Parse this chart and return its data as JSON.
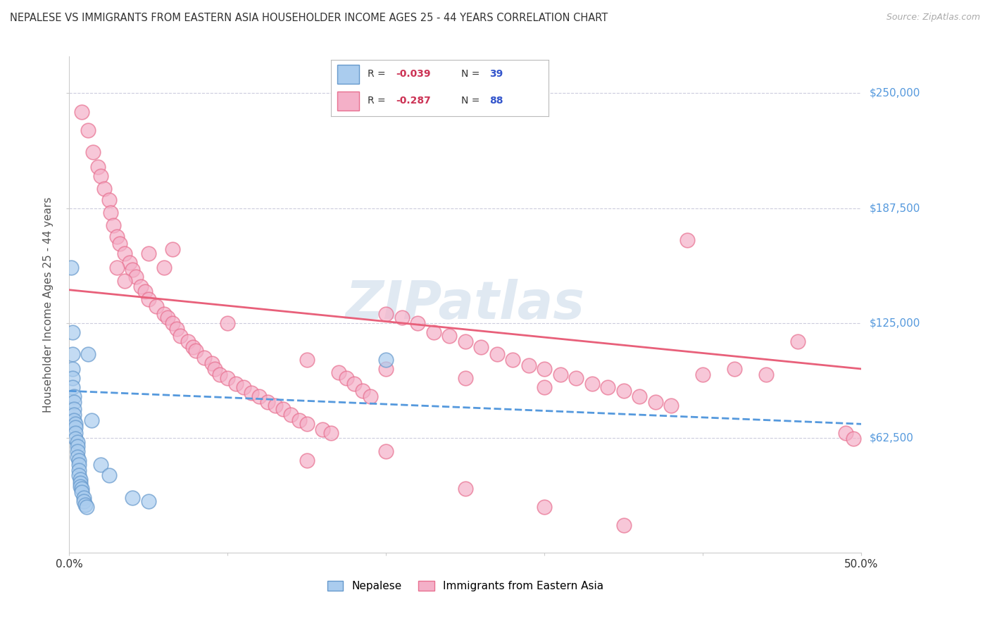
{
  "title": "NEPALESE VS IMMIGRANTS FROM EASTERN ASIA HOUSEHOLDER INCOME AGES 25 - 44 YEARS CORRELATION CHART",
  "source": "Source: ZipAtlas.com",
  "ylabel": "Householder Income Ages 25 - 44 years",
  "xmin": 0.0,
  "xmax": 0.5,
  "ymin": 0,
  "ymax": 270000,
  "yticks": [
    62500,
    125000,
    187500,
    250000
  ],
  "ytick_labels": [
    "$62,500",
    "$125,000",
    "$187,500",
    "$250,000"
  ],
  "xticks": [
    0.0,
    0.1,
    0.2,
    0.3,
    0.4,
    0.5
  ],
  "xtick_labels": [
    "0.0%",
    "",
    "",
    "",
    "",
    "50.0%"
  ],
  "nepalese_color": "#aaccee",
  "eastern_asia_color": "#f4b0c8",
  "nepalese_edge_color": "#6699cc",
  "eastern_asia_edge_color": "#e87090",
  "nepalese_line_color": "#5599dd",
  "eastern_asia_line_color": "#e8607a",
  "watermark": "ZIPatlas",
  "bg_color": "#ffffff",
  "grid_color": "#ccccdd",
  "right_label_color": "#5599dd",
  "nepalese_points": [
    [
      0.001,
      155000
    ],
    [
      0.002,
      120000
    ],
    [
      0.002,
      108000
    ],
    [
      0.002,
      100000
    ],
    [
      0.002,
      95000
    ],
    [
      0.002,
      90000
    ],
    [
      0.003,
      85000
    ],
    [
      0.003,
      82000
    ],
    [
      0.003,
      78000
    ],
    [
      0.003,
      75000
    ],
    [
      0.003,
      72000
    ],
    [
      0.004,
      70000
    ],
    [
      0.004,
      68000
    ],
    [
      0.004,
      65000
    ],
    [
      0.004,
      62000
    ],
    [
      0.005,
      60000
    ],
    [
      0.005,
      58000
    ],
    [
      0.005,
      55000
    ],
    [
      0.005,
      52000
    ],
    [
      0.006,
      50000
    ],
    [
      0.006,
      48000
    ],
    [
      0.006,
      45000
    ],
    [
      0.006,
      42000
    ],
    [
      0.007,
      40000
    ],
    [
      0.007,
      38000
    ],
    [
      0.007,
      36000
    ],
    [
      0.008,
      35000
    ],
    [
      0.008,
      33000
    ],
    [
      0.009,
      30000
    ],
    [
      0.009,
      28000
    ],
    [
      0.01,
      26000
    ],
    [
      0.011,
      25000
    ],
    [
      0.012,
      108000
    ],
    [
      0.014,
      72000
    ],
    [
      0.02,
      48000
    ],
    [
      0.025,
      42000
    ],
    [
      0.2,
      105000
    ],
    [
      0.04,
      30000
    ],
    [
      0.05,
      28000
    ]
  ],
  "eastern_asia_points": [
    [
      0.008,
      240000
    ],
    [
      0.012,
      230000
    ],
    [
      0.015,
      218000
    ],
    [
      0.018,
      210000
    ],
    [
      0.02,
      205000
    ],
    [
      0.022,
      198000
    ],
    [
      0.025,
      192000
    ],
    [
      0.026,
      185000
    ],
    [
      0.028,
      178000
    ],
    [
      0.03,
      172000
    ],
    [
      0.032,
      168000
    ],
    [
      0.035,
      163000
    ],
    [
      0.038,
      158000
    ],
    [
      0.04,
      154000
    ],
    [
      0.042,
      150000
    ],
    [
      0.045,
      145000
    ],
    [
      0.048,
      142000
    ],
    [
      0.05,
      138000
    ],
    [
      0.055,
      134000
    ],
    [
      0.06,
      130000
    ],
    [
      0.062,
      128000
    ],
    [
      0.065,
      125000
    ],
    [
      0.068,
      122000
    ],
    [
      0.07,
      118000
    ],
    [
      0.075,
      115000
    ],
    [
      0.078,
      112000
    ],
    [
      0.08,
      110000
    ],
    [
      0.085,
      106000
    ],
    [
      0.09,
      103000
    ],
    [
      0.092,
      100000
    ],
    [
      0.095,
      97000
    ],
    [
      0.1,
      95000
    ],
    [
      0.105,
      92000
    ],
    [
      0.11,
      90000
    ],
    [
      0.115,
      87000
    ],
    [
      0.12,
      85000
    ],
    [
      0.125,
      82000
    ],
    [
      0.13,
      80000
    ],
    [
      0.135,
      78000
    ],
    [
      0.14,
      75000
    ],
    [
      0.145,
      72000
    ],
    [
      0.15,
      70000
    ],
    [
      0.16,
      67000
    ],
    [
      0.165,
      65000
    ],
    [
      0.17,
      98000
    ],
    [
      0.175,
      95000
    ],
    [
      0.18,
      92000
    ],
    [
      0.185,
      88000
    ],
    [
      0.19,
      85000
    ],
    [
      0.2,
      130000
    ],
    [
      0.21,
      128000
    ],
    [
      0.22,
      125000
    ],
    [
      0.23,
      120000
    ],
    [
      0.24,
      118000
    ],
    [
      0.25,
      115000
    ],
    [
      0.26,
      112000
    ],
    [
      0.27,
      108000
    ],
    [
      0.28,
      105000
    ],
    [
      0.29,
      102000
    ],
    [
      0.3,
      100000
    ],
    [
      0.31,
      97000
    ],
    [
      0.32,
      95000
    ],
    [
      0.33,
      92000
    ],
    [
      0.34,
      90000
    ],
    [
      0.35,
      88000
    ],
    [
      0.36,
      85000
    ],
    [
      0.37,
      82000
    ],
    [
      0.38,
      80000
    ],
    [
      0.03,
      155000
    ],
    [
      0.035,
      148000
    ],
    [
      0.05,
      163000
    ],
    [
      0.06,
      155000
    ],
    [
      0.065,
      165000
    ],
    [
      0.1,
      125000
    ],
    [
      0.15,
      105000
    ],
    [
      0.2,
      100000
    ],
    [
      0.25,
      95000
    ],
    [
      0.3,
      90000
    ],
    [
      0.39,
      170000
    ],
    [
      0.4,
      97000
    ],
    [
      0.42,
      100000
    ],
    [
      0.44,
      97000
    ],
    [
      0.46,
      115000
    ],
    [
      0.49,
      65000
    ],
    [
      0.495,
      62000
    ],
    [
      0.25,
      35000
    ],
    [
      0.3,
      25000
    ],
    [
      0.35,
      15000
    ],
    [
      0.2,
      55000
    ],
    [
      0.15,
      50000
    ]
  ],
  "nep_trend": [
    0.0,
    0.5,
    88000,
    70000
  ],
  "ea_trend": [
    0.0,
    0.5,
    143000,
    100000
  ]
}
